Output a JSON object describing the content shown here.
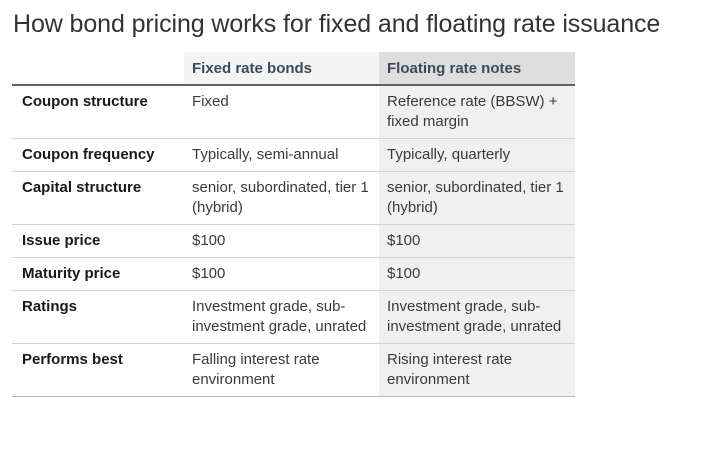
{
  "title": "How bond pricing works for fixed and floating rate issuance",
  "table": {
    "headers": [
      "",
      "Fixed rate bonds",
      "Floating rate notes"
    ],
    "rows": [
      {
        "label": "Coupon structure",
        "fixed": "Fixed",
        "floating": "Reference rate (BBSW) + fixed margin"
      },
      {
        "label": "Coupon frequency",
        "fixed": "Typically, semi-annual",
        "floating": "Typically, quarterly"
      },
      {
        "label": "Capital structure",
        "fixed": "senior, subordinated, tier 1 (hybrid)",
        "floating": "senior, subordinated, tier 1 (hybrid)"
      },
      {
        "label": "Issue price",
        "fixed": "$100",
        "floating": "$100"
      },
      {
        "label": "Maturity price",
        "fixed": "$100",
        "floating": "$100"
      },
      {
        "label": "Ratings",
        "fixed": "Investment grade, sub-investment grade, unrated",
        "floating": "Investment grade, sub-investment grade, unrated"
      },
      {
        "label": "Performs best",
        "fixed": "Falling interest rate environment",
        "floating": "Rising interest rate environment"
      }
    ]
  },
  "colors": {
    "header_text": "#3d4a5c",
    "floating_column_bg": "#f0f0f0",
    "floating_header_bg": "#dedede"
  }
}
